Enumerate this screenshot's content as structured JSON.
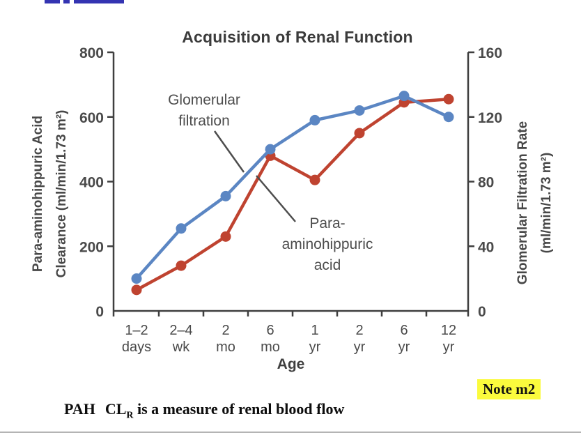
{
  "note": {
    "text": "Note m2",
    "highlight_color": "#fbfb3d"
  },
  "caption": {
    "p1": "PAH",
    "p2": "CL",
    "sub": "R",
    "p3": "is a measure of renal blood flow"
  },
  "top_link_fragment": {
    "color": "#3434b2",
    "state": "clipped-unreadable"
  },
  "chart_data": {
    "type": "line",
    "title": "Acquisition of Renal Function",
    "xlabel": "Age",
    "x_categories": [
      [
        "1–2",
        "days"
      ],
      [
        "2–4",
        "wk"
      ],
      [
        "2",
        "mo"
      ],
      [
        "6",
        "mo"
      ],
      [
        "1",
        "yr"
      ],
      [
        "2",
        "yr"
      ],
      [
        "6",
        "yr"
      ],
      [
        "12",
        "yr"
      ]
    ],
    "left_axis": {
      "title_lines": [
        "Para-aminohippuric Acid",
        "Clearance (ml/min/1.73 m²)"
      ],
      "ticks": [
        0,
        200,
        400,
        600,
        800
      ],
      "range": [
        0,
        800
      ]
    },
    "right_axis": {
      "title_lines": [
        "Glomerular Filtration Rate",
        "(ml/min/1.73 m²)"
      ],
      "ticks": [
        0,
        40,
        80,
        120,
        160
      ],
      "range": [
        0,
        160
      ]
    },
    "grid": false,
    "series": [
      {
        "id": "gfr",
        "name": "Glomerular filtration",
        "axis": "right",
        "color": "#5b86c3",
        "values": [
          20,
          51,
          71,
          100,
          118,
          124,
          133,
          120
        ]
      },
      {
        "id": "pah",
        "name": "Para-aminohippuric acid",
        "axis": "left",
        "color": "#bf4330",
        "values": [
          65,
          140,
          230,
          480,
          405,
          550,
          645,
          655
        ]
      }
    ],
    "annotations": [
      {
        "lines": [
          "Glomerular",
          "filtration"
        ],
        "cx": 293,
        "cy": 158,
        "leader": [
          308,
          188,
          350,
          247
        ]
      },
      {
        "lines": [
          "Para-",
          "aminohippuric",
          "acid"
        ],
        "cx": 470,
        "cy": 350,
        "leader": [
          368,
          252,
          424,
          318
        ]
      }
    ]
  }
}
